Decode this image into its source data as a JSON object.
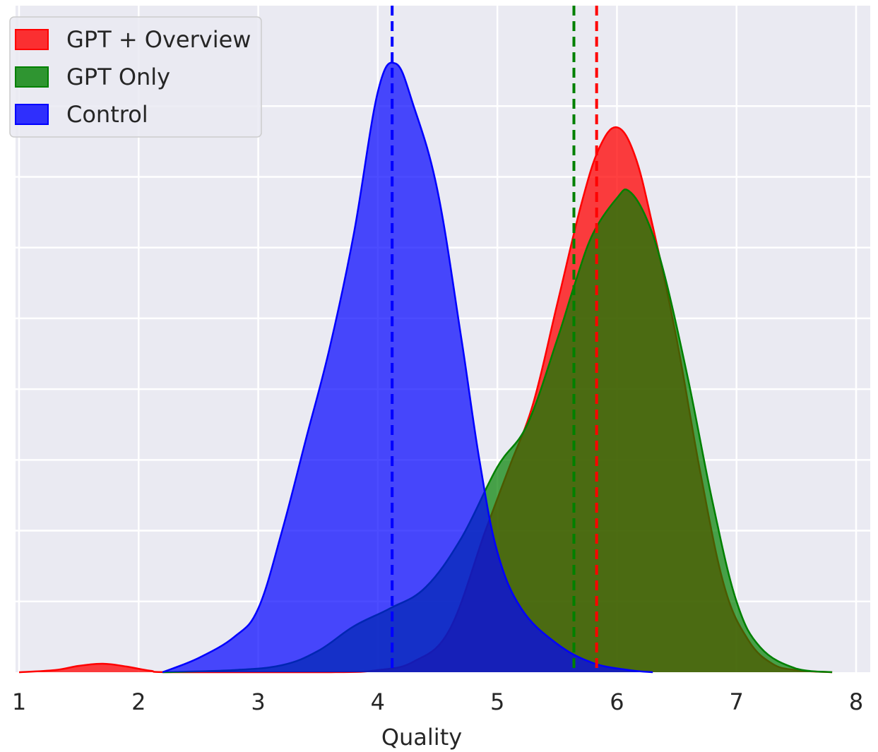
{
  "chart_data": {
    "type": "area",
    "subtype": "kde-density",
    "xlabel": "Quality",
    "ylabel": "",
    "xlim": [
      1,
      8
    ],
    "ylim": [
      0,
      0.9
    ],
    "x_ticks": [
      1,
      2,
      3,
      4,
      5,
      6,
      7,
      8
    ],
    "x_tick_labels": [
      "1",
      "2",
      "3",
      "4",
      "5",
      "6",
      "7",
      "8"
    ],
    "y_gridlines": [
      0.1,
      0.2,
      0.3,
      0.4,
      0.5,
      0.6,
      0.7,
      0.8
    ],
    "grid": true,
    "legend_position": "top-left",
    "background": "#eaeaf2",
    "series": [
      {
        "name": "Control",
        "color": "#0000ff",
        "fill_opacity": 0.7,
        "mean": 4.12,
        "points": [
          [
            2.2,
            0.0
          ],
          [
            2.5,
            0.02
          ],
          [
            2.8,
            0.05
          ],
          [
            3.0,
            0.09
          ],
          [
            3.2,
            0.2
          ],
          [
            3.4,
            0.33
          ],
          [
            3.6,
            0.46
          ],
          [
            3.8,
            0.62
          ],
          [
            4.0,
            0.82
          ],
          [
            4.15,
            0.86
          ],
          [
            4.3,
            0.8
          ],
          [
            4.5,
            0.68
          ],
          [
            4.7,
            0.47
          ],
          [
            4.85,
            0.3
          ],
          [
            5.0,
            0.17
          ],
          [
            5.2,
            0.09
          ],
          [
            5.5,
            0.04
          ],
          [
            5.8,
            0.013
          ],
          [
            6.1,
            0.003
          ],
          [
            6.3,
            0.0
          ]
        ]
      },
      {
        "name": "GPT Only",
        "color": "#008000",
        "fill_opacity": 0.7,
        "mean": 5.64,
        "points": [
          [
            2.2,
            0.0
          ],
          [
            2.8,
            0.003
          ],
          [
            3.2,
            0.01
          ],
          [
            3.5,
            0.03
          ],
          [
            3.8,
            0.065
          ],
          [
            4.1,
            0.09
          ],
          [
            4.4,
            0.12
          ],
          [
            4.7,
            0.19
          ],
          [
            5.0,
            0.29
          ],
          [
            5.25,
            0.35
          ],
          [
            5.5,
            0.47
          ],
          [
            5.65,
            0.55
          ],
          [
            5.8,
            0.62
          ],
          [
            6.0,
            0.67
          ],
          [
            6.1,
            0.68
          ],
          [
            6.25,
            0.64
          ],
          [
            6.4,
            0.56
          ],
          [
            6.6,
            0.41
          ],
          [
            6.8,
            0.24
          ],
          [
            7.0,
            0.1
          ],
          [
            7.2,
            0.035
          ],
          [
            7.5,
            0.005
          ],
          [
            7.8,
            0.0
          ]
        ]
      },
      {
        "name": "GPT + Overview",
        "color": "#ff0000",
        "fill_opacity": 0.75,
        "mean": 5.83,
        "points": [
          [
            1.0,
            0.0
          ],
          [
            1.3,
            0.003
          ],
          [
            1.5,
            0.009
          ],
          [
            1.7,
            0.012
          ],
          [
            1.9,
            0.008
          ],
          [
            2.1,
            0.002
          ],
          [
            2.3,
            0.0
          ],
          [
            3.6,
            0.0
          ],
          [
            4.0,
            0.003
          ],
          [
            4.3,
            0.015
          ],
          [
            4.6,
            0.06
          ],
          [
            4.9,
            0.2
          ],
          [
            5.1,
            0.29
          ],
          [
            5.3,
            0.38
          ],
          [
            5.5,
            0.52
          ],
          [
            5.7,
            0.66
          ],
          [
            5.85,
            0.74
          ],
          [
            6.0,
            0.77
          ],
          [
            6.15,
            0.73
          ],
          [
            6.3,
            0.63
          ],
          [
            6.5,
            0.47
          ],
          [
            6.7,
            0.28
          ],
          [
            6.9,
            0.12
          ],
          [
            7.1,
            0.045
          ],
          [
            7.3,
            0.012
          ],
          [
            7.5,
            0.003
          ],
          [
            7.8,
            0.0
          ]
        ]
      }
    ],
    "legend_order": [
      "GPT + Overview",
      "GPT Only",
      "Control"
    ]
  }
}
